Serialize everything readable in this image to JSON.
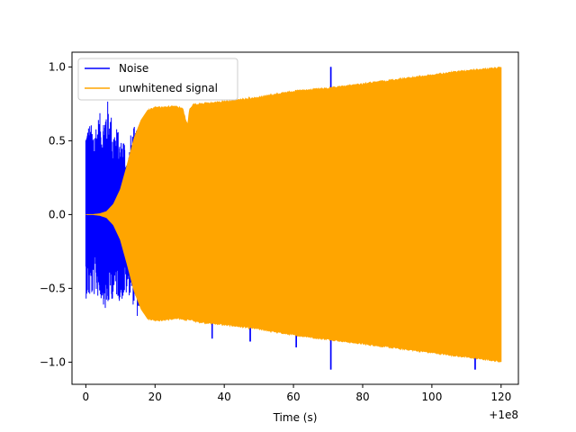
{
  "chart_data": {
    "type": "line",
    "xlabel": "Time (s)",
    "ylabel": "",
    "title": "",
    "offset_label": "+1e8",
    "xlim": [
      -4,
      125
    ],
    "ylim": [
      -1.15,
      1.1
    ],
    "x_ticks": [
      0,
      20,
      40,
      60,
      80,
      100,
      120
    ],
    "x_tick_labels": [
      "0",
      "20",
      "40",
      "60",
      "80",
      "100",
      "120"
    ],
    "y_ticks": [
      1.0,
      0.5,
      0.0,
      -0.5,
      -1.0
    ],
    "y_tick_labels": [
      "1.0",
      "0.5",
      "0.0",
      "−0.5",
      "−1.0"
    ],
    "grid": false,
    "legend_position": "upper-left",
    "series": [
      {
        "name": "Noise",
        "color": "#0000ff",
        "envelope": {
          "x": [
            0,
            1,
            2,
            3,
            4,
            5,
            6,
            7,
            8,
            9,
            10,
            11,
            12,
            13,
            14,
            15,
            16
          ],
          "upper": [
            0.62,
            0.63,
            0.6,
            0.65,
            0.69,
            0.67,
            0.8,
            0.73,
            0.6,
            0.6,
            0.5,
            0.55,
            0.35,
            0.55,
            0.6,
            0.55,
            0.5
          ],
          "lower": [
            -0.57,
            -0.58,
            -0.56,
            -0.55,
            -0.58,
            -0.6,
            -0.7,
            -0.57,
            -0.58,
            -0.56,
            -0.6,
            -0.57,
            -0.55,
            -0.55,
            -0.65,
            -0.7,
            -0.6
          ]
        },
        "spikes": [
          {
            "x": 36.5,
            "low": -0.84,
            "high": 0.0
          },
          {
            "x": 47.5,
            "low": -0.86,
            "high": 0.0
          },
          {
            "x": 60.8,
            "low": -0.9,
            "high": 0.0
          },
          {
            "x": 70.8,
            "low": -1.05,
            "high": 1.0
          },
          {
            "x": 112.5,
            "low": -1.05,
            "high": 0.0
          }
        ]
      },
      {
        "name": "unwhitened signal",
        "color": "#ffa500",
        "envelope": {
          "x": [
            0,
            2,
            4,
            6,
            8,
            10,
            12,
            14,
            16,
            18,
            20,
            22,
            26,
            28,
            29,
            29.5,
            30,
            31,
            32,
            40,
            50,
            60,
            70,
            80,
            90,
            100,
            110,
            120
          ],
          "upper": [
            0.0,
            0.0,
            0.005,
            0.02,
            0.07,
            0.17,
            0.34,
            0.52,
            0.64,
            0.71,
            0.73,
            0.73,
            0.74,
            0.72,
            0.63,
            0.62,
            0.72,
            0.75,
            0.75,
            0.77,
            0.8,
            0.84,
            0.86,
            0.89,
            0.92,
            0.95,
            0.98,
            1.0
          ],
          "lower": [
            0.0,
            0.0,
            -0.005,
            -0.02,
            -0.07,
            -0.17,
            -0.34,
            -0.52,
            -0.64,
            -0.71,
            -0.72,
            -0.72,
            -0.71,
            -0.71,
            -0.72,
            -0.71,
            -0.72,
            -0.72,
            -0.73,
            -0.75,
            -0.78,
            -0.82,
            -0.85,
            -0.88,
            -0.91,
            -0.94,
            -0.97,
            -1.0
          ]
        }
      }
    ]
  }
}
